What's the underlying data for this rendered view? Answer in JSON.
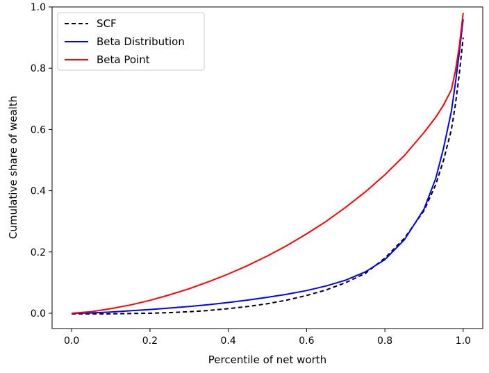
{
  "chart_data": {
    "type": "line",
    "xlabel": "Percentile of net worth",
    "ylabel": "Cumulative share of wealth",
    "xlim": [
      -0.05,
      1.05
    ],
    "ylim": [
      -0.05,
      1.0
    ],
    "xticks": [
      "0.0",
      "0.2",
      "0.4",
      "0.6",
      "0.8",
      "1.0"
    ],
    "yticks": [
      "0.0",
      "0.2",
      "0.4",
      "0.6",
      "0.8",
      "1.0"
    ],
    "grid": false,
    "legend_position": "upper-left",
    "series": [
      {
        "name": "SCF",
        "color": "#000000",
        "dash": "dashed",
        "x": [
          0.0,
          0.05,
          0.1,
          0.15,
          0.2,
          0.25,
          0.3,
          0.35,
          0.4,
          0.45,
          0.5,
          0.55,
          0.6,
          0.65,
          0.7,
          0.75,
          0.8,
          0.85,
          0.9,
          0.93,
          0.95,
          0.97,
          0.98,
          0.99,
          1.0
        ],
        "y": [
          -0.002,
          -0.002,
          -0.002,
          -0.001,
          0.0,
          0.002,
          0.005,
          0.009,
          0.015,
          0.022,
          0.031,
          0.043,
          0.058,
          0.076,
          0.1,
          0.13,
          0.18,
          0.245,
          0.335,
          0.42,
          0.5,
          0.6,
          0.68,
          0.78,
          0.9
        ]
      },
      {
        "name": "Beta Distribution",
        "color": "#0000ff",
        "dash": "solid",
        "x": [
          0.0,
          0.05,
          0.1,
          0.15,
          0.2,
          0.25,
          0.3,
          0.35,
          0.4,
          0.45,
          0.5,
          0.55,
          0.6,
          0.65,
          0.7,
          0.75,
          0.8,
          0.85,
          0.9,
          0.93,
          0.95,
          0.97,
          0.98,
          0.99,
          1.0
        ],
        "y": [
          0.0,
          0.001,
          0.004,
          0.008,
          0.012,
          0.017,
          0.022,
          0.028,
          0.035,
          0.043,
          0.052,
          0.062,
          0.074,
          0.089,
          0.108,
          0.135,
          0.175,
          0.24,
          0.34,
          0.44,
          0.54,
          0.66,
          0.75,
          0.85,
          0.96
        ]
      },
      {
        "name": "Beta Point",
        "color": "#ff0000",
        "dash": "solid",
        "x": [
          0.0,
          0.05,
          0.1,
          0.15,
          0.2,
          0.25,
          0.3,
          0.35,
          0.4,
          0.45,
          0.5,
          0.55,
          0.6,
          0.65,
          0.7,
          0.75,
          0.8,
          0.85,
          0.9,
          0.93,
          0.95,
          0.97,
          0.98,
          0.99,
          1.0
        ],
        "y": [
          0.0,
          0.005,
          0.015,
          0.027,
          0.042,
          0.06,
          0.08,
          0.103,
          0.128,
          0.156,
          0.187,
          0.221,
          0.259,
          0.3,
          0.346,
          0.396,
          0.452,
          0.515,
          0.59,
          0.64,
          0.68,
          0.73,
          0.79,
          0.87,
          0.98
        ]
      }
    ]
  }
}
